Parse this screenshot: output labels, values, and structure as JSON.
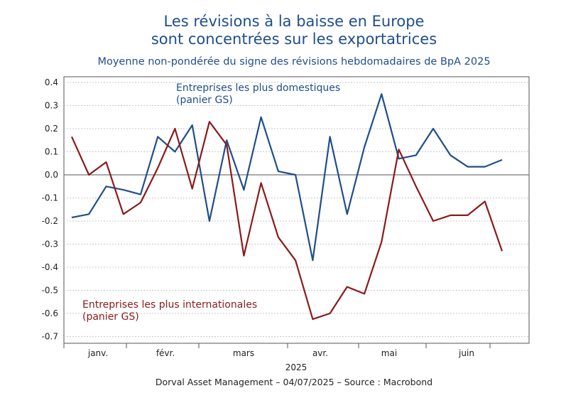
{
  "chart_data": {
    "type": "line",
    "title_lines": [
      "Les révisions à la baisse en Europe",
      "sont concentrées sur les exportatrices"
    ],
    "subtitle": "Moyenne non-pondérée du signe des révisions hebdomadaires de BpA 2025",
    "xlabel": "2025",
    "ylabel": "",
    "ylim": [
      -0.7,
      0.4
    ],
    "yticks": [
      "0.4",
      "0.3",
      "0.2",
      "0.1",
      "0.0",
      "-0.1",
      "-0.2",
      "-0.3",
      "-0.4",
      "-0.5",
      "-0.6",
      "-0.7"
    ],
    "month_labels": [
      "janv.",
      "févr.",
      "mars",
      "avr.",
      "mai",
      "juin"
    ],
    "grid": true,
    "series": [
      {
        "name": "Entreprises les plus domestiques (panier GS)",
        "label_lines": [
          "Entreprises les plus domestiques",
          "(panier GS)"
        ],
        "color": "#1f4e8c",
        "values": [
          -0.185,
          -0.17,
          -0.05,
          -0.065,
          -0.085,
          0.165,
          0.1,
          0.215,
          -0.2,
          0.15,
          -0.065,
          0.25,
          0.015,
          0.0,
          -0.37,
          0.165,
          -0.17,
          0.12,
          0.35,
          0.07,
          0.085,
          0.2,
          0.085,
          0.035,
          0.035,
          0.065
        ]
      },
      {
        "name": "Entreprises les plus internationales (panier GS)",
        "label_lines": [
          "Entreprises les plus internationales",
          "(panier GS)"
        ],
        "color": "#8b1a1a",
        "values": [
          0.165,
          0.0,
          0.055,
          -0.17,
          -0.12,
          0.03,
          0.2,
          -0.06,
          0.23,
          0.13,
          -0.35,
          -0.035,
          -0.27,
          -0.37,
          -0.625,
          -0.6,
          -0.485,
          -0.515,
          -0.29,
          0.11,
          -0.05,
          -0.2,
          -0.175,
          -0.175,
          -0.115,
          -0.33
        ]
      }
    ]
  },
  "footer": "Dorval Asset Management – 04/07/2025 –  Source : Macrobond"
}
